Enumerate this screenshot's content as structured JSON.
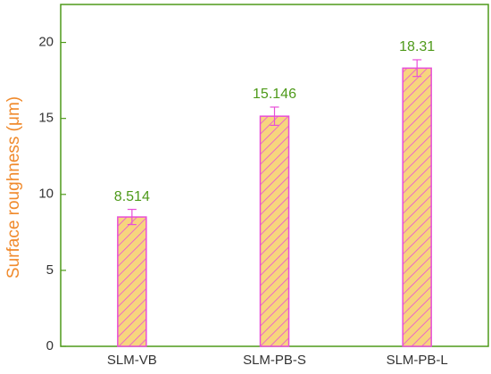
{
  "chart_data": {
    "type": "bar",
    "y_label": "Surface roughness (μm)",
    "categories": [
      "SLM-VB",
      "SLM-PB-S",
      "SLM-PB-L"
    ],
    "values": [
      8.514,
      15.146,
      18.31
    ],
    "errors": [
      0.5,
      0.6,
      0.55
    ],
    "color": "#f7d57e",
    "edge_color": "#e84fd8",
    "hatch_color": "#e84fd8",
    "error_color": "#e84fd8",
    "label_color": "#4e9a1a",
    "axis_color": "#4e9a1a",
    "y_label_color": "#f08a2c",
    "ylim": [
      0,
      22.5
    ],
    "yticks": [
      0,
      5,
      10,
      15,
      20
    ]
  }
}
